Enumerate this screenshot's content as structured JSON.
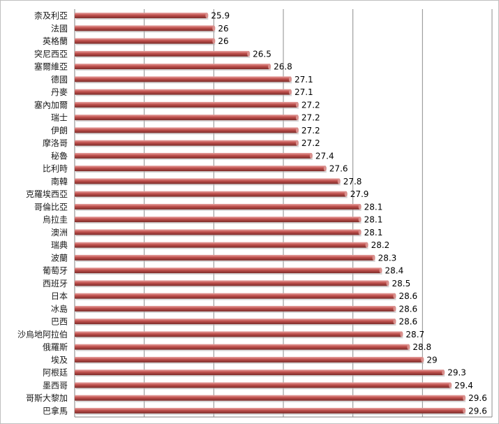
{
  "chart_data": {
    "type": "bar",
    "orientation": "horizontal",
    "title": "",
    "xlabel": "",
    "ylabel": "",
    "categories": [
      "柰及利亞",
      "法國",
      "英格蘭",
      "突尼西亞",
      "塞爾維亞",
      "德國",
      "丹麥",
      "塞內加爾",
      "瑞士",
      "伊朗",
      "摩洛哥",
      "秘魯",
      "比利時",
      "南韓",
      "克羅埃西亞",
      "哥倫比亞",
      "烏拉圭",
      "澳洲",
      "瑞典",
      "波蘭",
      "葡萄牙",
      "西班牙",
      "日本",
      "冰島",
      "巴西",
      "沙烏地阿拉伯",
      "俄羅斯",
      "埃及",
      "阿根廷",
      "墨西哥",
      "哥斯大黎加",
      "巴拿馬"
    ],
    "values": [
      25.9,
      26,
      26,
      26.5,
      26.8,
      27.1,
      27.1,
      27.2,
      27.2,
      27.2,
      27.2,
      27.4,
      27.6,
      27.8,
      27.9,
      28.1,
      28.1,
      28.1,
      28.2,
      28.3,
      28.4,
      28.5,
      28.6,
      28.6,
      28.6,
      28.7,
      28.8,
      29,
      29.3,
      29.4,
      29.6,
      29.6
    ],
    "value_labels": [
      "25.9",
      "26",
      "26",
      "26.5",
      "26.8",
      "27.1",
      "27.1",
      "27.2",
      "27.2",
      "27.2",
      "27.2",
      "27.4",
      "27.6",
      "27.8",
      "27.9",
      "28.1",
      "28.1",
      "28.1",
      "28.2",
      "28.3",
      "28.4",
      "28.5",
      "28.6",
      "28.6",
      "28.6",
      "28.7",
      "28.8",
      "29",
      "29.3",
      "29.4",
      "29.6",
      "29.6"
    ],
    "xlim": [
      24,
      30
    ],
    "grid": true,
    "legend": "none",
    "bar_color": "#c0504d",
    "bar_highlight": "#e8a5a3",
    "bar_shadow": "#7a2b29"
  }
}
